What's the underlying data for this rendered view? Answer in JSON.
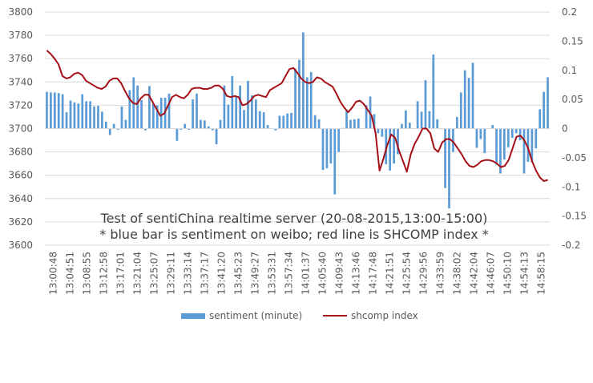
{
  "chart_data": {
    "type": "bar+line",
    "title": "",
    "annotations": [
      "Test of sentiChina realtime server (20-08-2015,13:00-15:00)",
      "* blue bar is sentiment on weibo; red line is SHCOMP index *"
    ],
    "x_tick_labels": [
      "13:00:48",
      "13:04:51",
      "13:08:55",
      "13:12:58",
      "13:17:01",
      "13:21:04",
      "13:25:07",
      "13:29:11",
      "13:33:14",
      "13:37:17",
      "13:41:20",
      "13:45:23",
      "13:49:27",
      "13:53:31",
      "13:57:34",
      "14:01:37",
      "14:05:40",
      "14:09:43",
      "14:13:46",
      "14:17:48",
      "14:21:51",
      "14:25:54",
      "14:29:56",
      "14:33:59",
      "14:38:02",
      "14:42:04",
      "14:46:07",
      "14:50:10",
      "14:54:13",
      "14:58:15"
    ],
    "y_left": {
      "min": 3600,
      "max": 3800,
      "step": 20,
      "ticks": [
        "3600",
        "3620",
        "3640",
        "3660",
        "3680",
        "3700",
        "3720",
        "3740",
        "3760",
        "3780",
        "3800"
      ]
    },
    "y_right": {
      "min": -0.2,
      "max": 0.2,
      "step": 0.05,
      "ticks": [
        "-0.2",
        "-0.15",
        "-0.1",
        "-0.05",
        "0",
        "0.05",
        "0.1",
        "0.15",
        "0.2"
      ]
    },
    "legend": {
      "position": "bottom",
      "items": [
        {
          "name": "sentiment (minute)",
          "color": "#5b9bd5"
        },
        {
          "name": "shcomp index",
          "color": "#a50f15"
        }
      ]
    },
    "series": [
      {
        "name": "sentiment (minute)",
        "type": "bar",
        "axis": "right",
        "color": "#5b9bd5",
        "values": [
          0.063,
          0.062,
          0.062,
          0.061,
          0.059,
          0.028,
          0.048,
          0.045,
          0.043,
          0.059,
          0.047,
          0.047,
          0.038,
          0.039,
          0.029,
          0.012,
          -0.011,
          0.008,
          -0.002,
          0.038,
          0.015,
          0.066,
          0.088,
          0.074,
          0.049,
          -0.003,
          0.073,
          0.043,
          0.04,
          0.053,
          0.053,
          0.06,
          0.0,
          -0.021,
          -0.002,
          0.008,
          -0.002,
          0.05,
          0.06,
          0.015,
          0.014,
          0.004,
          -0.003,
          -0.027,
          0.015,
          0.074,
          0.041,
          0.09,
          0.056,
          0.074,
          0.032,
          0.082,
          0.057,
          0.05,
          0.03,
          0.028,
          0.006,
          0.0,
          -0.003,
          0.022,
          0.022,
          0.026,
          0.027,
          0.103,
          0.118,
          0.165,
          0.088,
          0.097,
          0.023,
          0.016,
          -0.071,
          -0.068,
          -0.06,
          -0.113,
          -0.04,
          0.001,
          0.032,
          0.015,
          0.016,
          0.017,
          0.0,
          0.04,
          0.055,
          0.025,
          -0.008,
          -0.014,
          -0.061,
          -0.072,
          -0.06,
          -0.044,
          0.008,
          0.031,
          0.01,
          0.0,
          0.047,
          0.029,
          0.083,
          0.03,
          0.127,
          0.016,
          -0.001,
          -0.102,
          -0.137,
          -0.04,
          0.02,
          0.062,
          0.1,
          0.087,
          0.113,
          -0.033,
          -0.018,
          -0.042,
          0.0,
          0.006,
          -0.062,
          -0.077,
          -0.053,
          -0.032,
          -0.016,
          -0.008,
          -0.02,
          -0.077,
          -0.057,
          -0.058,
          -0.034,
          0.033,
          0.063,
          0.088
        ]
      },
      {
        "name": "shcomp index",
        "type": "line",
        "axis": "left",
        "color": "#a50f15",
        "values": [
          3767,
          3764,
          3760,
          3755,
          3745,
          3743,
          3744,
          3747,
          3748,
          3746,
          3741,
          3739,
          3737,
          3735,
          3734,
          3736,
          3741,
          3743,
          3743,
          3739,
          3732,
          3726,
          3722,
          3721,
          3726,
          3729,
          3729,
          3723,
          3717,
          3711,
          3713,
          3720,
          3727,
          3729,
          3727,
          3726,
          3729,
          3734,
          3735,
          3735,
          3734,
          3734,
          3735,
          3737,
          3737,
          3734,
          3728,
          3727,
          3728,
          3727,
          3720,
          3721,
          3724,
          3728,
          3729,
          3728,
          3727,
          3733,
          3735,
          3737,
          3739,
          3745,
          3751,
          3752,
          3748,
          3743,
          3740,
          3739,
          3740,
          3744,
          3743,
          3740,
          3738,
          3736,
          3730,
          3723,
          3718,
          3714,
          3718,
          3723,
          3724,
          3721,
          3716,
          3711,
          3696,
          3664,
          3674,
          3686,
          3695,
          3692,
          3681,
          3672,
          3663,
          3678,
          3687,
          3693,
          3700,
          3700,
          3696,
          3683,
          3680,
          3688,
          3691,
          3691,
          3688,
          3683,
          3678,
          3672,
          3668,
          3667,
          3669,
          3672,
          3673,
          3673,
          3672,
          3670,
          3667,
          3668,
          3673,
          3683,
          3693,
          3694,
          3690,
          3683,
          3672,
          3664,
          3658,
          3655,
          3656
        ]
      }
    ]
  }
}
